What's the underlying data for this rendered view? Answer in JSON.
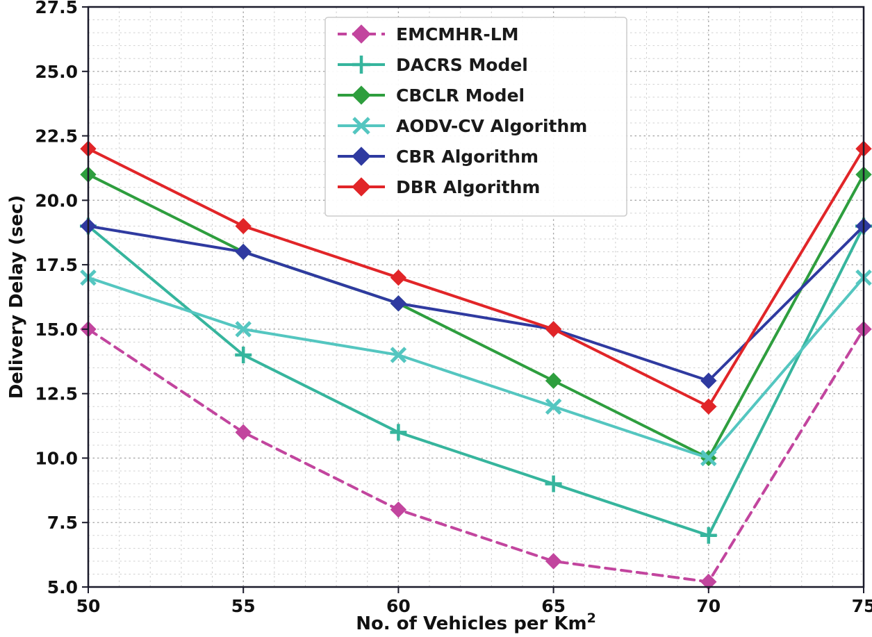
{
  "figure": {
    "ylabel": "Delivery Delay (sec)",
    "xlabel_main": "No. of Vehicles per Km",
    "xlabel_sup": "2"
  },
  "chart_data": {
    "type": "line",
    "title": "",
    "xlabel": "No. of Vehicles per Km²",
    "ylabel": "Delivery Delay (sec)",
    "xlim": [
      50,
      75
    ],
    "ylim": [
      5.0,
      27.5
    ],
    "x_ticks": [
      "50",
      "55",
      "60",
      "65",
      "70",
      "75"
    ],
    "y_ticks": [
      "5.0",
      "7.5",
      "10.0",
      "12.5",
      "15.0",
      "17.5",
      "20.0",
      "22.5",
      "25.0",
      "27.5"
    ],
    "grid": "dashed, major and minor (minor x step 1, minor y step 0.5)",
    "legend_position": "upper center-left",
    "x": [
      50,
      55,
      60,
      65,
      70,
      75
    ],
    "series": [
      {
        "name": "EMCMHR-LM",
        "color": "#c2459e",
        "marker": "diamond",
        "line": "dashed",
        "values": [
          15,
          11,
          8,
          6,
          5.2,
          15
        ]
      },
      {
        "name": "DACRS Model",
        "color": "#36b59d",
        "marker": "plus",
        "line": "solid",
        "values": [
          19,
          14,
          11,
          9,
          7,
          19
        ]
      },
      {
        "name": "CBCLR Model",
        "color": "#2e9e3e",
        "marker": "diamond",
        "line": "solid",
        "values": [
          21,
          18,
          16,
          13,
          10,
          21
        ]
      },
      {
        "name": "AODV-CV Algorithm",
        "color": "#54c6c0",
        "marker": "x",
        "line": "solid",
        "values": [
          17,
          15,
          14,
          12,
          10,
          17
        ]
      },
      {
        "name": "CBR Algorithm",
        "color": "#2f3aa0",
        "marker": "diamond",
        "line": "solid",
        "values": [
          19,
          18,
          16,
          15,
          13,
          19
        ]
      },
      {
        "name": "DBR Algorithm",
        "color": "#e12528",
        "marker": "diamond",
        "line": "solid",
        "values": [
          22,
          19,
          17,
          15,
          12,
          22
        ]
      }
    ]
  }
}
